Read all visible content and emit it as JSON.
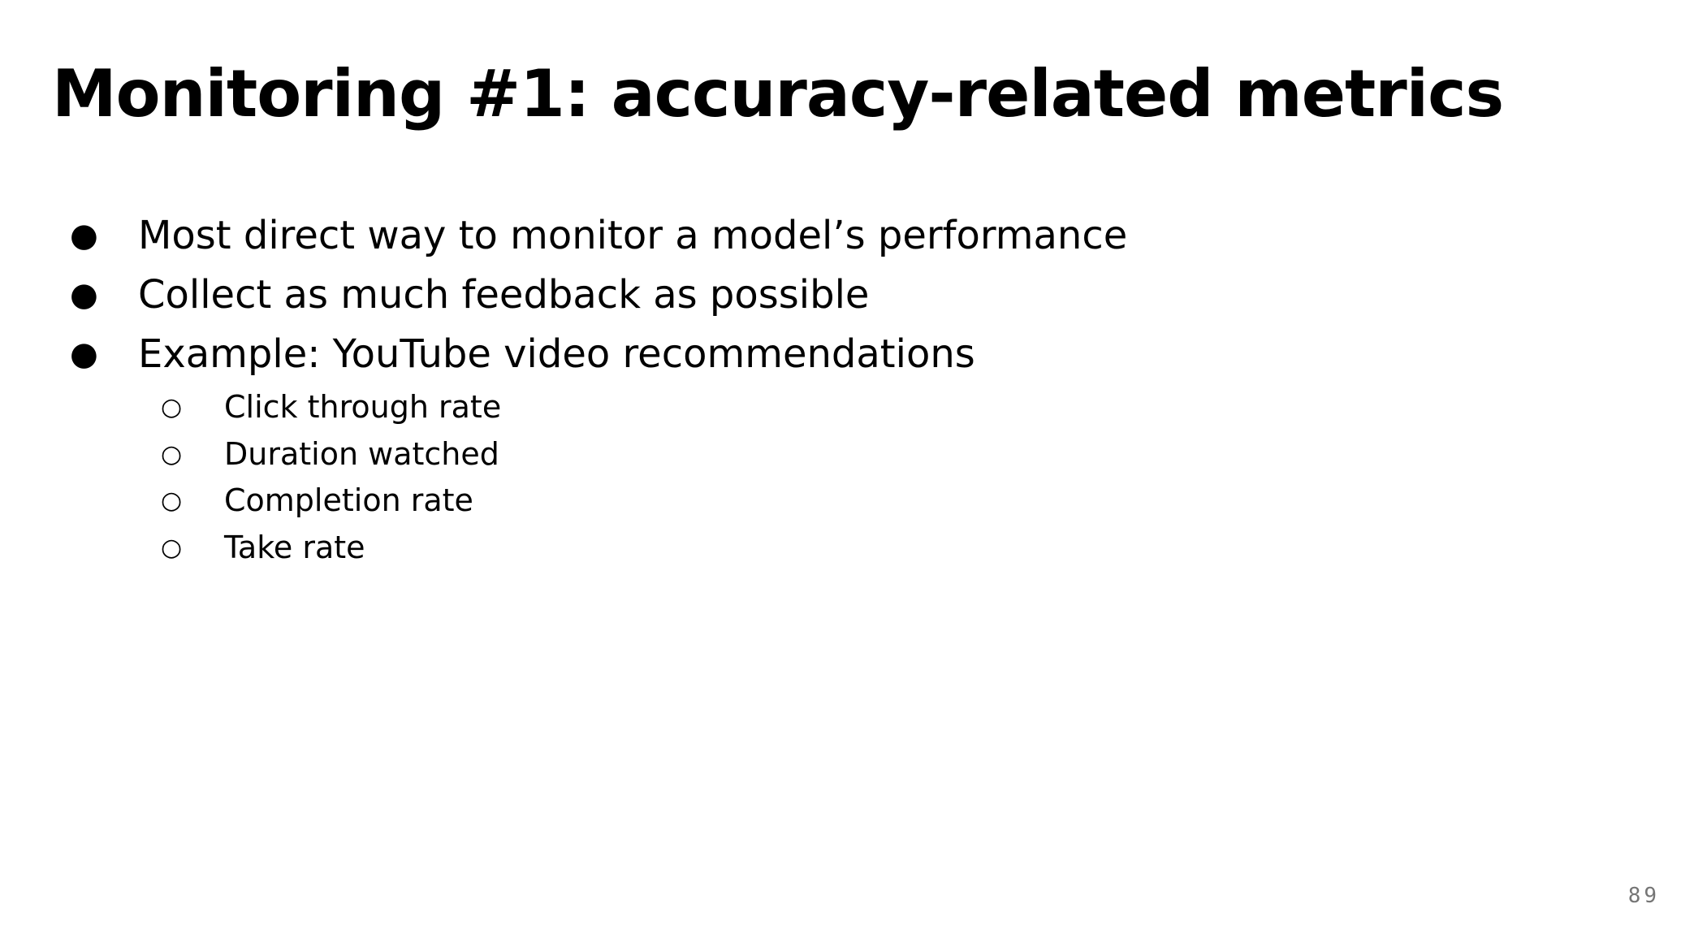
{
  "slide": {
    "title": "Monitoring #1: accuracy-related metrics",
    "bullets": [
      {
        "marker": "●",
        "text": "Most direct way to monitor a model’s performance"
      },
      {
        "marker": "●",
        "text": "Collect as much feedback as possible"
      },
      {
        "marker": "●",
        "text": "Example: YouTube video recommendations"
      }
    ],
    "sub_bullets": [
      {
        "marker": "○",
        "text": "Click through rate"
      },
      {
        "marker": "○",
        "text": "Duration watched"
      },
      {
        "marker": "○",
        "text": "Completion rate"
      },
      {
        "marker": "○",
        "text": "Take rate"
      }
    ],
    "page_number": "89"
  },
  "colors": {
    "background": "#ffffff",
    "text": "#000000",
    "page_number": "#757575"
  }
}
